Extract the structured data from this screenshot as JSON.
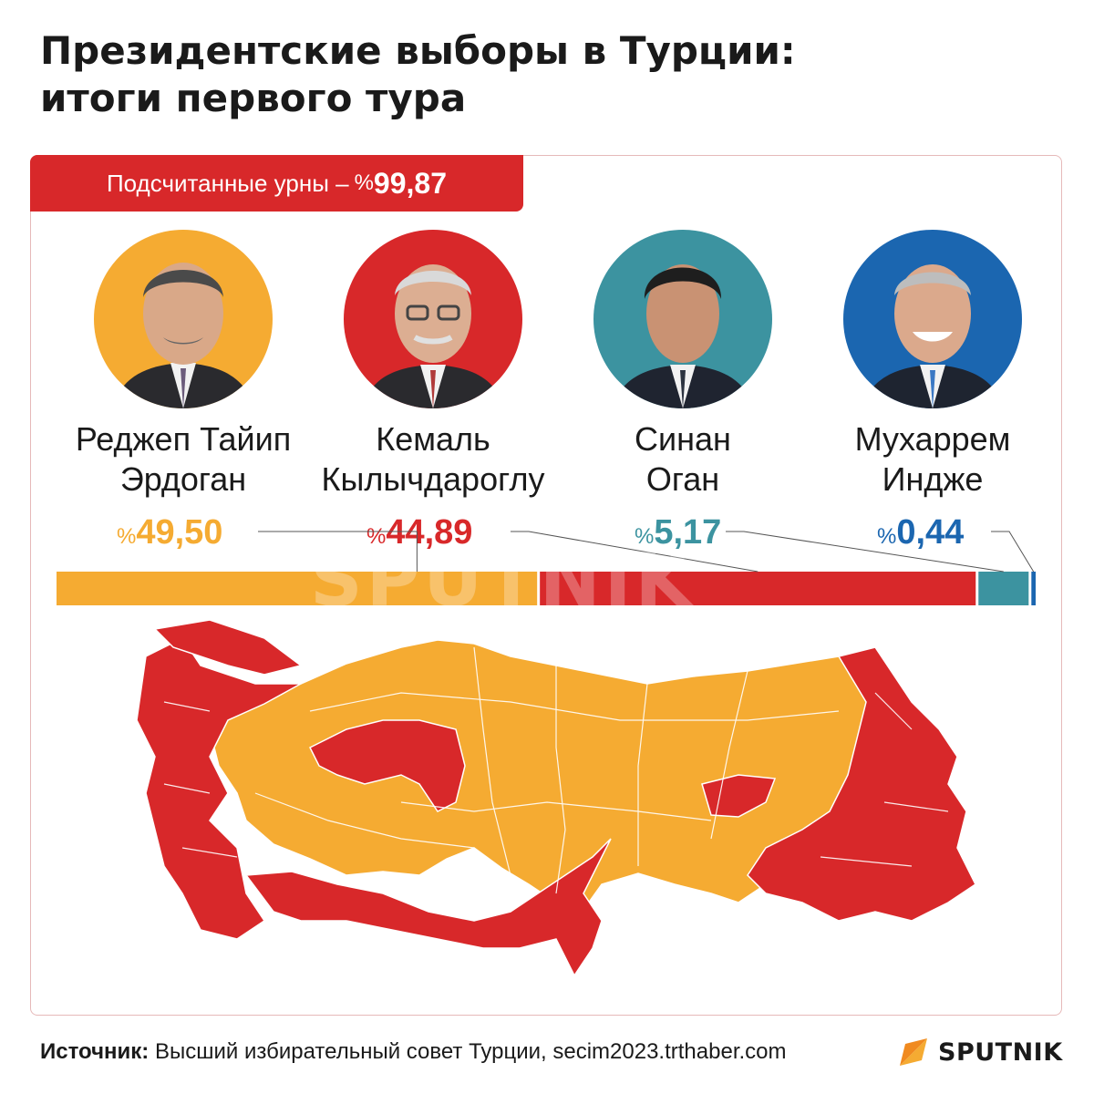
{
  "title_line1": "Президентские выборы в Турции:",
  "title_line2": "итоги первого тура",
  "counted": {
    "label": "Подсчитанные урны – ",
    "symbol": "%",
    "value": "99,87"
  },
  "colors": {
    "erdogan": "#f5ab32",
    "kilicdaroglu": "#d8282a",
    "ogan": "#3c93a0",
    "ince": "#1b66b0"
  },
  "chart_data": {
    "type": "bar",
    "categories": [
      "Реджеп Тайип Эрдоган",
      "Кемаль Кылычдароглу",
      "Синан Оган",
      "Мухаррем Индже"
    ],
    "values": [
      49.5,
      44.89,
      5.17,
      0.44
    ],
    "value_labels": [
      "49,50",
      "44,89",
      "5,17",
      "0,44"
    ],
    "percent_symbol": "%",
    "stacked": true,
    "xlim": [
      0,
      100
    ]
  },
  "candidates": [
    {
      "name1": "Реджеп Тайип",
      "name2": "Эрдоган"
    },
    {
      "name1": "Кемаль",
      "name2": "Кылычдароглу"
    },
    {
      "name1": "Синан",
      "name2": "Оган"
    },
    {
      "name1": "Мухаррем",
      "name2": "Индже"
    }
  ],
  "watermark": "SPUTNIK",
  "footer": {
    "label": "Источник:",
    "text": " Высший избирательный совет Турции, secim2023.trthaber.com"
  },
  "logo": {
    "text": "SPUTNIK",
    "icon": "sputnik-arrow-icon"
  }
}
